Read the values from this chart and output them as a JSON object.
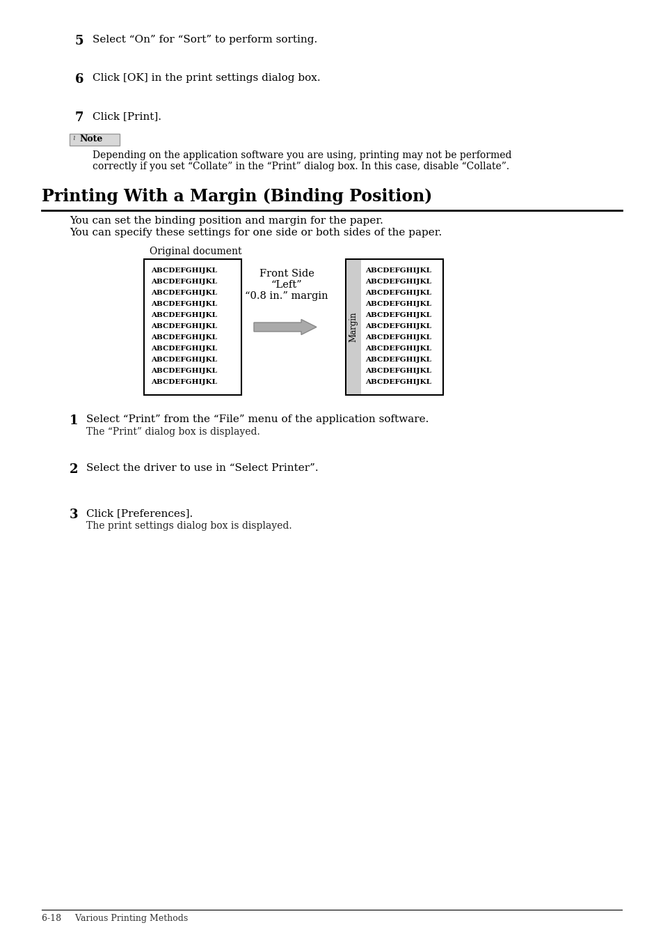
{
  "bg_color": "#ffffff",
  "step5_num": "5",
  "step5_text": "Select “On” for “Sort” to perform sorting.",
  "step6_num": "6",
  "step6_text": "Click [OK] in the print settings dialog box.",
  "step7_num": "7",
  "step7_text": "Click [Print].",
  "note_text1": "Depending on the application software you are using, printing may not be performed",
  "note_text2": "correctly if you set “Collate” in the “Print” dialog box. In this case, disable “Collate”.",
  "section_title": "Printing With a Margin (Binding Position)",
  "section_desc1": "You can set the binding position and margin for the paper.",
  "section_desc2": "You can specify these settings for one side or both sides of the paper.",
  "orig_doc_label": "Original document",
  "front_side_line1": "Front Side",
  "front_side_line2": "“Left”",
  "front_side_line3": "“0.8 in.” margin",
  "margin_label": "Margin",
  "abc_text": "ABCDEFGHIJKL",
  "abc_rows": 11,
  "step1_num": "1",
  "step1_text": "Select “Print” from the “File” menu of the application software.",
  "step1_sub": "The “Print” dialog box is displayed.",
  "step2_num": "2",
  "step2_text": "Select the driver to use in “Select Printer”.",
  "step3_num": "3",
  "step3_text": "Click [Preferences].",
  "step3_sub": "The print settings dialog box is displayed.",
  "footer_text": "6-18     Various Printing Methods"
}
